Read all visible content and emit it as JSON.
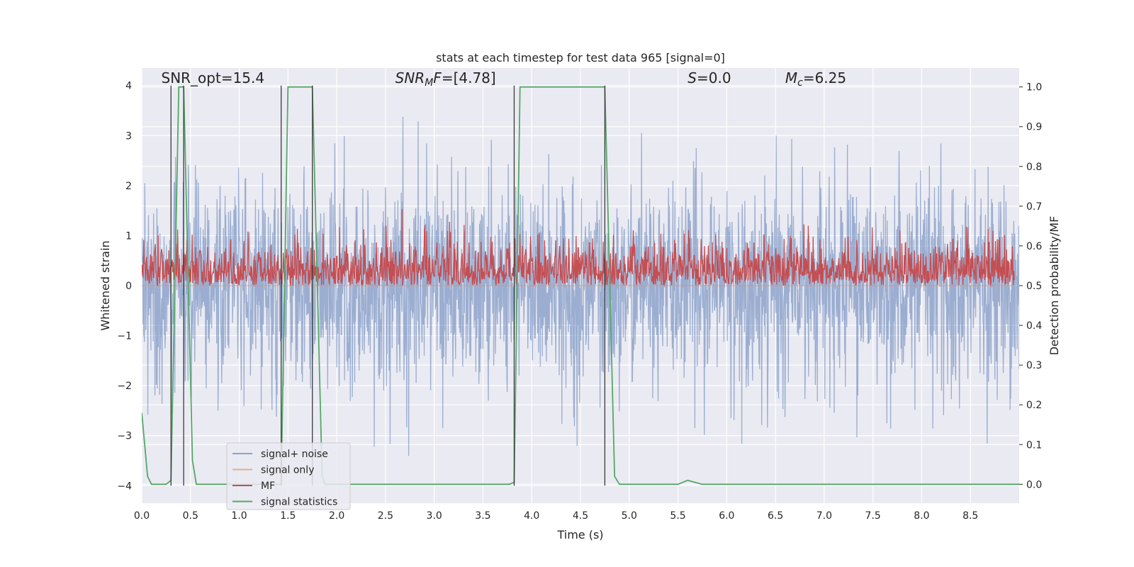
{
  "chart_data": {
    "type": "line",
    "title": "stats at each timestep for test data 965 [signal=0]",
    "xlabel": "Time (s)",
    "ylabel": "Whitened strain",
    "y2label": "Detection probability/MF",
    "xlim": [
      0.0,
      9.0
    ],
    "ylim": [
      -4.35,
      4.35
    ],
    "y2lim": [
      -0.0476,
      1.0476
    ],
    "xticks": [
      "0.0",
      "0.5",
      "1.0",
      "1.5",
      "2.0",
      "2.5",
      "3.0",
      "3.5",
      "4.0",
      "4.5",
      "5.0",
      "5.5",
      "6.0",
      "6.5",
      "7.0",
      "7.5",
      "8.0",
      "8.5"
    ],
    "yticks": [
      "−4",
      "−3",
      "−2",
      "−1",
      "0",
      "1",
      "2",
      "3",
      "4"
    ],
    "y2ticks": [
      "0.0",
      "0.1",
      "0.2",
      "0.3",
      "0.4",
      "0.5",
      "0.6",
      "0.7",
      "0.8",
      "0.9",
      "1.0"
    ],
    "grid": true,
    "legend_position": "lower-left",
    "annotations": [
      {
        "id": "snr_opt",
        "text": "SNR_opt=15.4",
        "x": 0.2,
        "y": 4.05
      },
      {
        "id": "snr_mf",
        "text": "SNR_MF=[4.78]",
        "x": 2.6,
        "y": 4.05
      },
      {
        "id": "s_val",
        "text": "S=0.0",
        "x": 5.6,
        "y": 4.05
      },
      {
        "id": "mc_val",
        "text": "M_c=6.25",
        "x": 6.6,
        "y": 4.05
      }
    ],
    "vertical_markers": [
      0.3,
      0.43,
      1.43,
      1.75,
      3.82,
      4.75
    ],
    "series": [
      {
        "name": "signal+ noise",
        "color": "#4c72b0",
        "axis": "left",
        "style": "noise",
        "duration_s": 9.0,
        "envelope": [
          [
            0.0,
            2.5
          ],
          [
            0.5,
            2.6
          ],
          [
            1.0,
            2.4
          ],
          [
            1.5,
            2.8
          ],
          [
            2.0,
            2.9
          ],
          [
            2.5,
            3.5
          ],
          [
            3.0,
            3.3
          ],
          [
            3.5,
            3.0
          ],
          [
            4.0,
            2.7
          ],
          [
            4.5,
            2.6
          ],
          [
            5.0,
            3.2
          ],
          [
            5.5,
            2.6
          ],
          [
            6.0,
            3.0
          ],
          [
            6.5,
            3.0
          ],
          [
            7.0,
            2.8
          ],
          [
            7.5,
            3.3
          ],
          [
            8.0,
            3.0
          ],
          [
            8.5,
            2.6
          ],
          [
            9.0,
            2.7
          ]
        ]
      },
      {
        "name": "signal only",
        "color": "#dd8452",
        "axis": "left",
        "style": "flat",
        "value": 0.0
      },
      {
        "name": "MF",
        "color": "#c44e52",
        "axis": "right",
        "style": "noise_positive",
        "base": 0.52,
        "spread": 0.06
      },
      {
        "name": "signal statistics",
        "color": "#55a868",
        "axis": "right",
        "style": "line",
        "x": [
          0.0,
          0.06,
          0.1,
          0.25,
          0.3,
          0.38,
          0.43,
          0.52,
          0.56,
          1.38,
          1.43,
          1.5,
          1.75,
          1.85,
          1.88,
          3.77,
          3.82,
          3.88,
          4.75,
          4.85,
          4.9,
          5.5,
          5.6,
          5.75,
          9.0
        ],
        "y": [
          0.18,
          0.02,
          0.0,
          0.0,
          0.01,
          1.0,
          1.0,
          0.06,
          0.0,
          0.0,
          0.0,
          1.0,
          1.0,
          0.02,
          0.0,
          0.0,
          0.005,
          1.0,
          1.0,
          0.02,
          0.0,
          0.0,
          0.01,
          0.0,
          0.0
        ]
      }
    ]
  }
}
